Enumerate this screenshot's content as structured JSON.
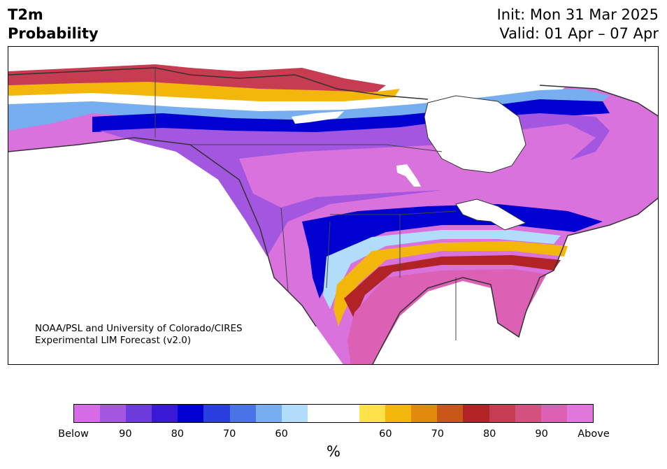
{
  "title": {
    "line1": "T2m",
    "line2": "Probability"
  },
  "dates": {
    "init": "Init: Mon 31 Mar 2025",
    "valid": "Valid: 01 Apr – 07 Apr"
  },
  "credit": {
    "line1": "NOAA/PSL and University of Colorado/CIRES",
    "line2": "Experimental LIM Forecast (v2.0)"
  },
  "colorbar": {
    "colors": [
      "#d66be6",
      "#a356e0",
      "#6d3bdb",
      "#3a19d6",
      "#0000d0",
      "#2a3fdf",
      "#4a73e8",
      "#77aef0",
      "#b1dcfa",
      "#ffffff",
      "#ffffff",
      "#ffe14a",
      "#f3b70c",
      "#e08a0e",
      "#c95818",
      "#b22326",
      "#c73c50",
      "#d4507f",
      "#dc60b4",
      "#e276dd"
    ],
    "labels": [
      "Below",
      "90",
      "80",
      "70",
      "60",
      "60",
      "70",
      "80",
      "90",
      "Above"
    ],
    "unit": "%"
  },
  "legend": {
    "below_label": "Below",
    "above_label": "Above"
  }
}
